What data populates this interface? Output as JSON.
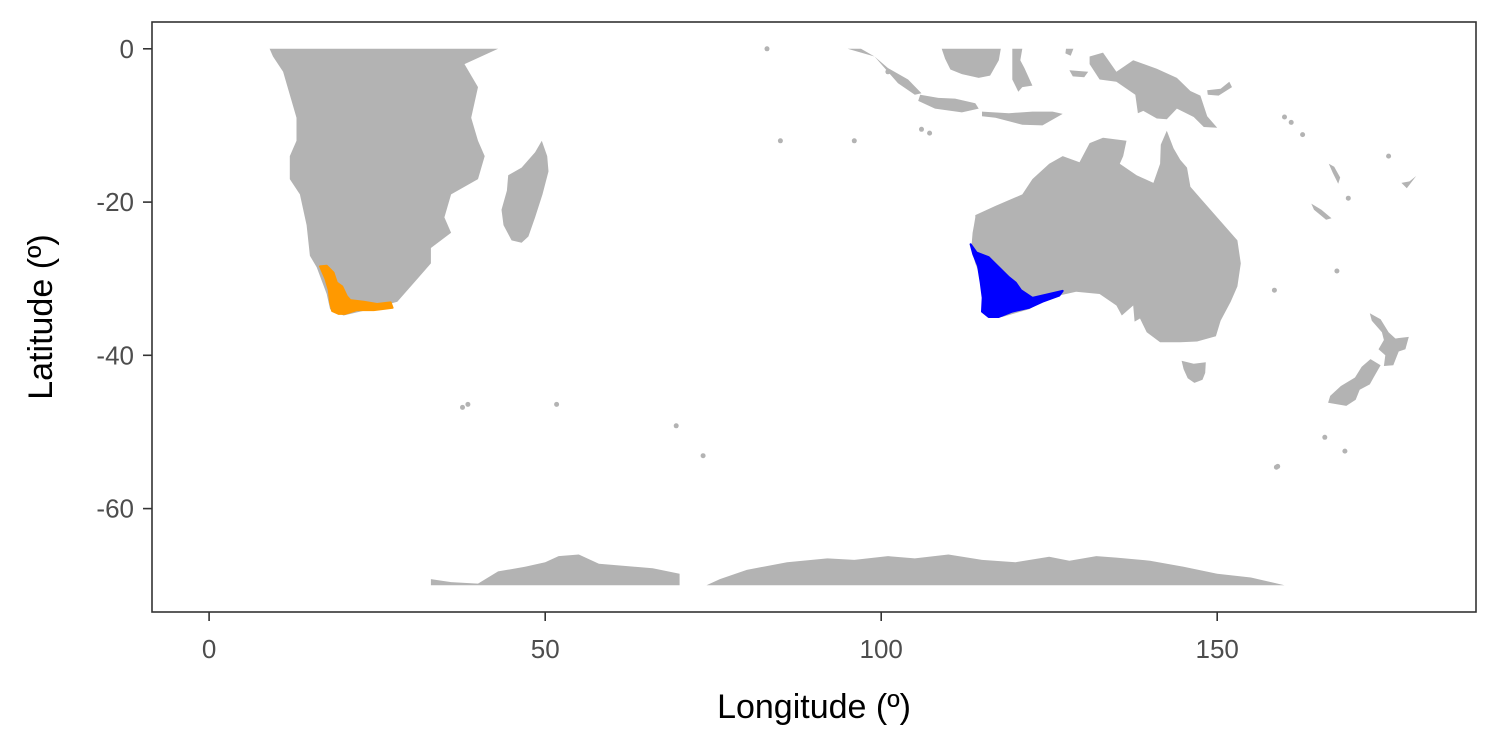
{
  "chart_data": {
    "type": "map",
    "xlabel": "Longitude (º)",
    "ylabel": "Latitude (º)",
    "xlim": [
      -8.5,
      188.5
    ],
    "ylim": [
      -73.5,
      3.5
    ],
    "x_ticks": [
      0,
      50,
      100,
      150
    ],
    "y_ticks": [
      0,
      -20,
      -40,
      -60
    ],
    "x_tick_labels": [
      "0",
      "50",
      "100",
      "150"
    ],
    "y_tick_labels": [
      "0",
      "-20",
      "-40",
      "-60"
    ],
    "grid": false,
    "land_color": "#b3b3b3",
    "highlight_regions": [
      {
        "region": "southwest-south-africa",
        "color": "#ff9900"
      },
      {
        "region": "southwest-australia",
        "color": "#0000ff"
      }
    ]
  }
}
